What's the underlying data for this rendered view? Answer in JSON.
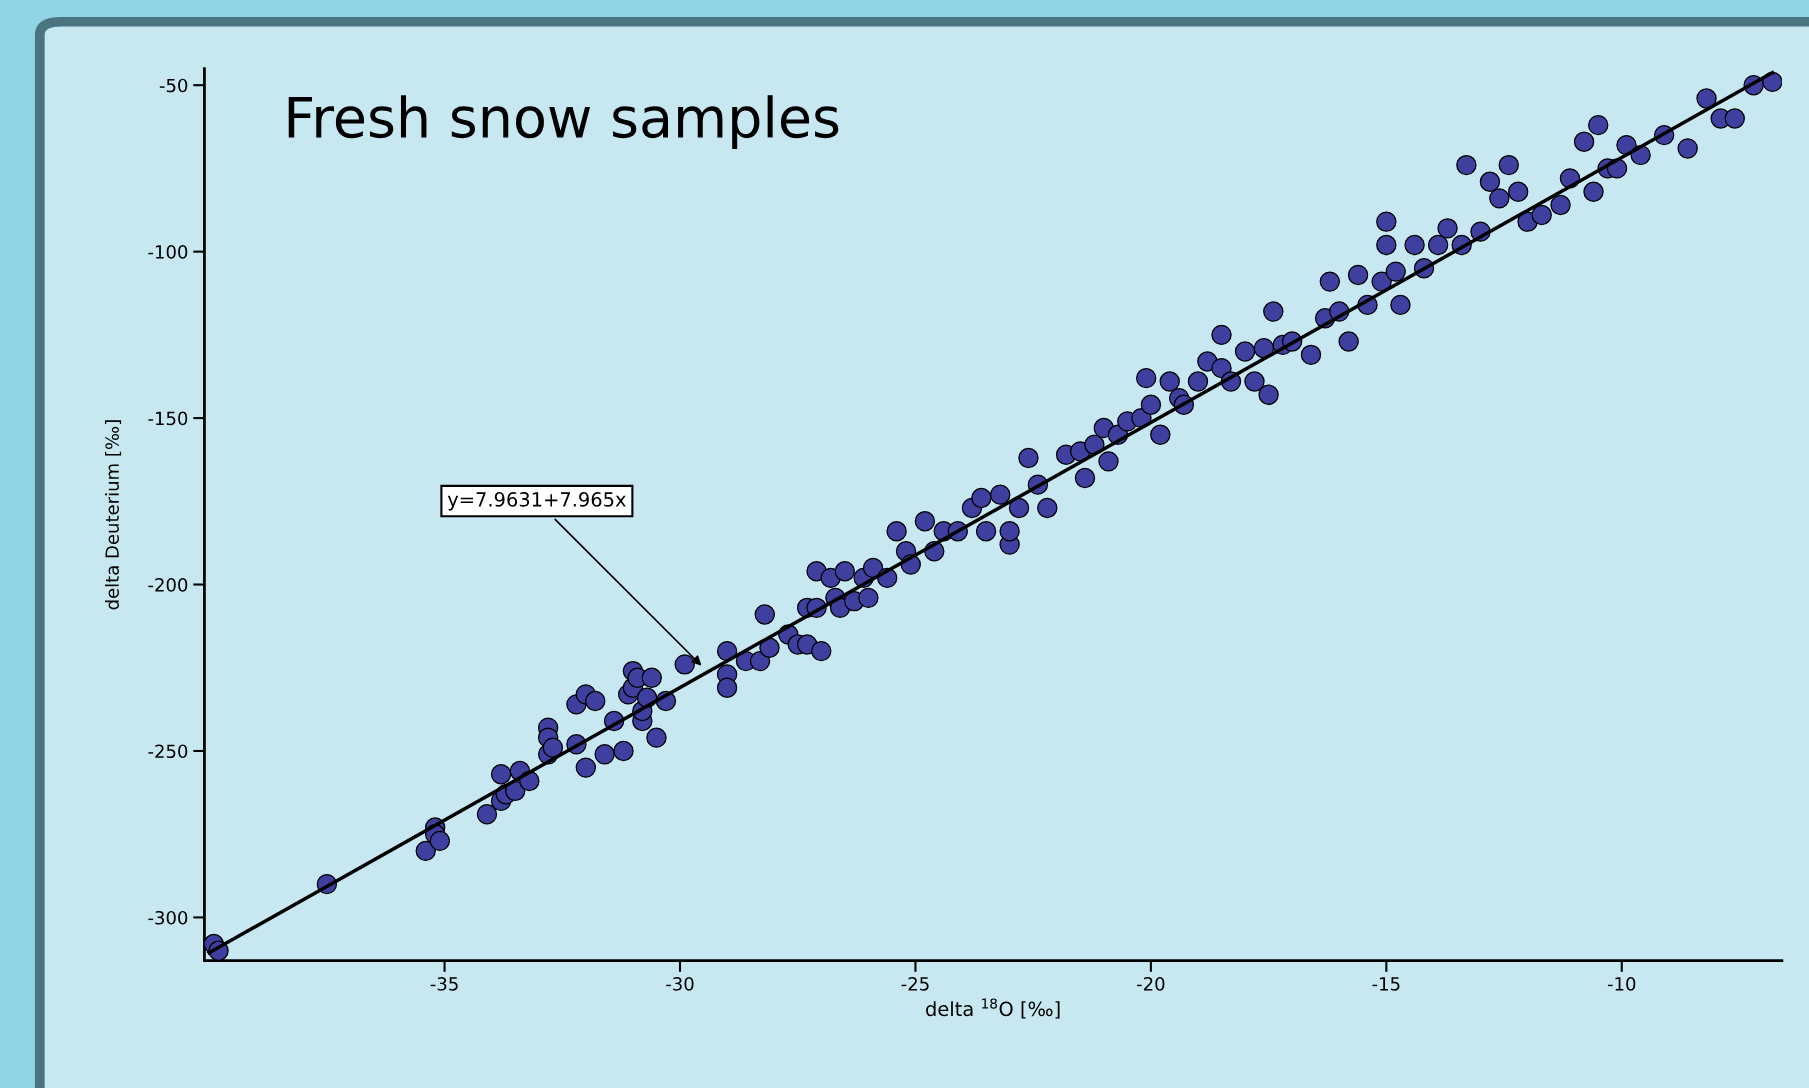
{
  "chart_data": {
    "type": "scatter",
    "title": "Fresh snow samples",
    "xlabel": "delta $^{18}$O [‰]",
    "ylabel": "delta Deuterium [‰]",
    "xlim": [
      -40.1,
      -6.6
    ],
    "ylim": [
      -313,
      -45
    ],
    "xticks": [
      -35,
      -30,
      -25,
      -20,
      -15,
      -10
    ],
    "yticks": [
      -300,
      -250,
      -200,
      -150,
      -100,
      -50
    ],
    "grid": false,
    "legend": false,
    "annotations": [
      {
        "text": "y=7.9631+7.965x",
        "x": -29.5,
        "y": -225
      }
    ],
    "series": [
      {
        "marker": "circle",
        "color": "#3f3fa0",
        "x": [
          -39.9,
          -39.8,
          -37.5,
          -35.4,
          -35.2,
          -35.2,
          -35.1,
          -34.1,
          -33.8,
          -33.8,
          -33.7,
          -33.5,
          -33.4,
          -33.2,
          -32.8,
          -32.8,
          -32.8,
          -32.7,
          -32.2,
          -32.2,
          -32.0,
          -32.0,
          -31.8,
          -31.6,
          -31.4,
          -31.2,
          -31.1,
          -31.0,
          -31.0,
          -30.9,
          -30.8,
          -30.8,
          -30.7,
          -30.6,
          -30.5,
          -30.3,
          -29.9,
          -29.0,
          -29.0,
          -29.0,
          -28.6,
          -28.3,
          -28.2,
          -28.1,
          -27.7,
          -27.5,
          -27.3,
          -27.3,
          -27.1,
          -27.1,
          -27.0,
          -26.8,
          -26.7,
          -26.6,
          -26.5,
          -26.3,
          -26.1,
          -26.0,
          -25.9,
          -25.6,
          -25.4,
          -25.2,
          -25.1,
          -24.8,
          -24.6,
          -24.4,
          -24.1,
          -23.8,
          -23.6,
          -23.5,
          -23.2,
          -23.0,
          -23.0,
          -22.8,
          -22.6,
          -22.4,
          -22.2,
          -21.8,
          -21.5,
          -21.4,
          -21.2,
          -21.0,
          -20.9,
          -20.7,
          -20.5,
          -20.2,
          -20.1,
          -20.0,
          -19.8,
          -19.6,
          -19.4,
          -19.3,
          -19.0,
          -18.8,
          -18.5,
          -18.5,
          -18.3,
          -18.0,
          -17.8,
          -17.6,
          -17.5,
          -17.4,
          -17.2,
          -17.0,
          -16.6,
          -16.3,
          -16.2,
          -16.0,
          -15.8,
          -15.6,
          -15.4,
          -15.1,
          -15.0,
          -15.0,
          -14.8,
          -14.7,
          -14.4,
          -14.2,
          -13.9,
          -13.7,
          -13.4,
          -13.3,
          -13.0,
          -12.8,
          -12.6,
          -12.4,
          -12.2,
          -12.0,
          -11.7,
          -11.3,
          -11.1,
          -10.8,
          -10.6,
          -10.5,
          -10.3,
          -10.1,
          -9.9,
          -9.6,
          -9.1,
          -8.6,
          -8.2,
          -7.9,
          -7.6,
          -7.2,
          -6.8
        ],
        "values": [
          -308,
          -310,
          -290,
          -280,
          -273,
          -275,
          -277,
          -269,
          -257,
          -265,
          -263,
          -262,
          -256,
          -259,
          -243,
          -246,
          -251,
          -249,
          -236,
          -248,
          -233,
          -255,
          -235,
          -251,
          -241,
          -250,
          -233,
          -226,
          -231,
          -228,
          -241,
          -238,
          -234,
          -228,
          -246,
          -235,
          -224,
          -220,
          -227,
          -231,
          -223,
          -223,
          -209,
          -219,
          -215,
          -218,
          -218,
          -207,
          -196,
          -207,
          -220,
          -198,
          -204,
          -207,
          -196,
          -205,
          -198,
          -204,
          -195,
          -198,
          -184,
          -190,
          -194,
          -181,
          -190,
          -184,
          -184,
          -177,
          -174,
          -184,
          -173,
          -188,
          -184,
          -177,
          -162,
          -170,
          -177,
          -161,
          -160,
          -168,
          -158,
          -153,
          -163,
          -155,
          -151,
          -150,
          -138,
          -146,
          -155,
          -139,
          -144,
          -146,
          -139,
          -133,
          -135,
          -125,
          -139,
          -130,
          -139,
          -129,
          -143,
          -118,
          -128,
          -127,
          -131,
          -120,
          -109,
          -118,
          -127,
          -107,
          -116,
          -109,
          -91,
          -98,
          -106,
          -116,
          -98,
          -105,
          -98,
          -93,
          -98,
          -74,
          -94,
          -79,
          -84,
          -74,
          -82,
          -91,
          -89,
          -86,
          -78,
          -67,
          -82,
          -62,
          -75,
          -75,
          -68,
          -71,
          -65,
          -69,
          -54,
          -60,
          -60,
          -50,
          -49
        ]
      },
      {
        "type": "line",
        "marker": "none",
        "color": "#000000",
        "x": [
          -40.0,
          -6.8
        ],
        "values": [
          -310.6,
          -46.2
        ]
      }
    ]
  }
}
